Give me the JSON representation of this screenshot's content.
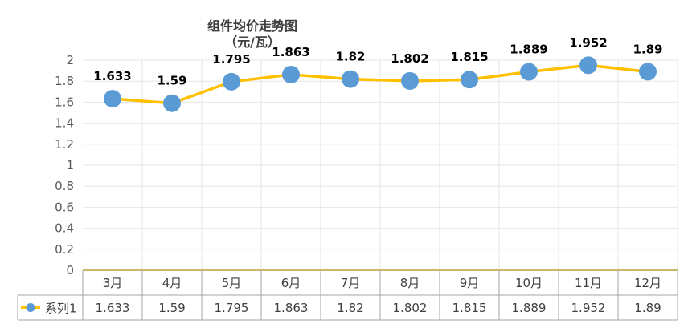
{
  "chart_data": {
    "type": "line",
    "title": "组件均价走势图",
    "subtitle": "（元/瓦）",
    "categories": [
      "3月",
      "4月",
      "5月",
      "6月",
      "7月",
      "8月",
      "9月",
      "10月",
      "11月",
      "12月"
    ],
    "series": [
      {
        "name": "系列1",
        "values": [
          1.633,
          1.59,
          1.795,
          1.863,
          1.82,
          1.802,
          1.815,
          1.889,
          1.952,
          1.89
        ],
        "labels": [
          "1.633",
          "1.59",
          "1.795",
          "1.863",
          "1.82",
          "1.802",
          "1.815",
          "1.889",
          "1.952",
          "1.89"
        ],
        "line_color": "#FFC000",
        "marker_color": "#5B9BD5"
      }
    ],
    "ylim": [
      0,
      2
    ],
    "yticks": [
      "0",
      "0.2",
      "0.4",
      "0.6",
      "0.8",
      "1",
      "1.2",
      "1.4",
      "1.6",
      "1.8",
      "2"
    ],
    "grid": true,
    "legend": "data-table"
  }
}
